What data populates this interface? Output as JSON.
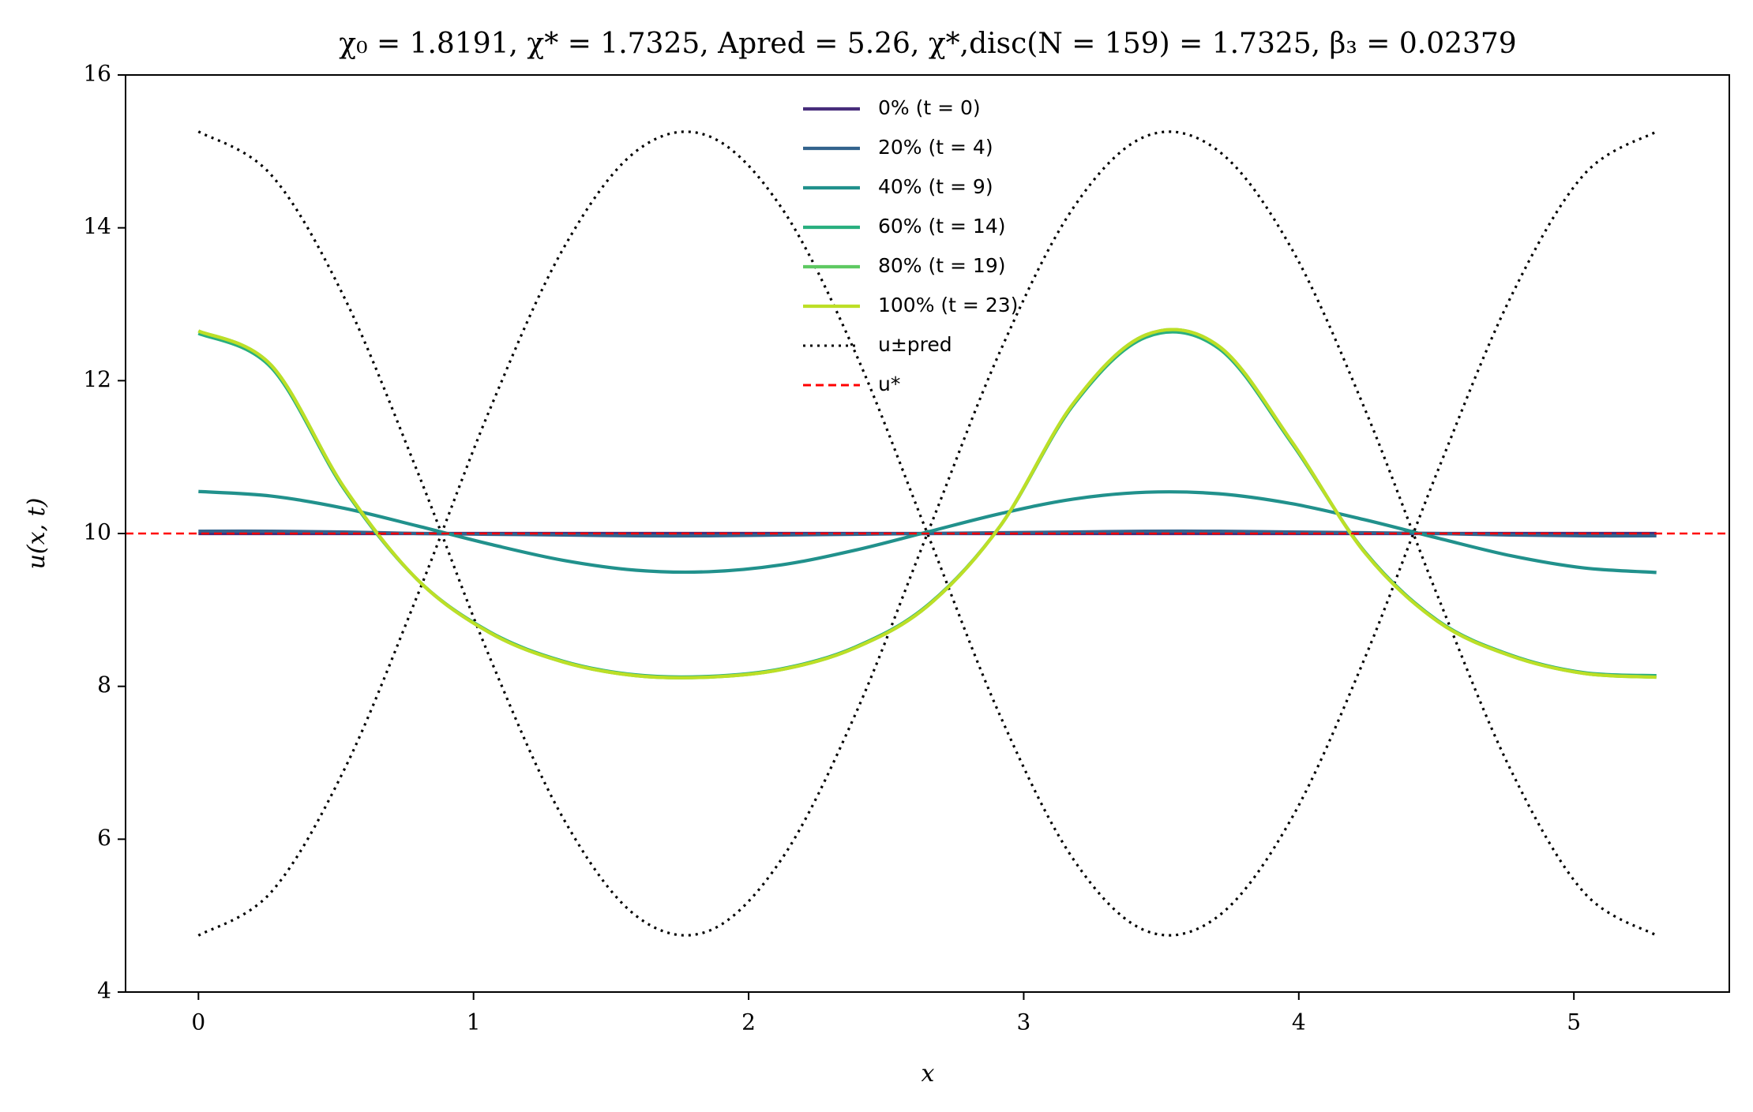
{
  "chart_data": {
    "type": "line",
    "title": "χ₀ = 1.8191,  χ* = 1.7325,  Apred = 5.26,  χ*,disc(N = 159) = 1.7325,  β₃ = 0.02379",
    "x_label": "x",
    "y_label": "u(x, t)",
    "xlim": [
      -0.265,
      5.565
    ],
    "ylim": [
      4,
      16
    ],
    "xticks": [
      0,
      1,
      2,
      3,
      4,
      5
    ],
    "yticks": [
      4,
      6,
      8,
      10,
      12,
      14,
      16
    ],
    "x": [
      0,
      0.265,
      0.53,
      0.795,
      1.06,
      1.325,
      1.59,
      1.855,
      2.12,
      2.385,
      2.65,
      2.915,
      3.18,
      3.445,
      3.71,
      3.975,
      4.24,
      4.505,
      4.77,
      5.035,
      5.3
    ],
    "series": [
      {
        "name": "0% (t = 0)",
        "color": "#472d7b",
        "linestyle": "solid",
        "values": [
          10,
          10,
          10,
          10,
          10,
          10,
          10,
          10,
          10,
          10,
          10,
          10,
          10,
          10,
          10,
          10,
          10,
          10,
          10,
          10,
          10
        ]
      },
      {
        "name": "20% (t = 4)",
        "color": "#33638d",
        "linestyle": "solid",
        "values": [
          10.03,
          10.03,
          10.02,
          10.0,
          9.99,
          9.98,
          9.97,
          9.97,
          9.98,
          9.99,
          10.0,
          10.01,
          10.02,
          10.03,
          10.03,
          10.02,
          10.01,
          10.0,
          9.98,
          9.97,
          9.97
        ]
      },
      {
        "name": "40% (t = 9)",
        "color": "#21918c",
        "linestyle": "solid",
        "values": [
          10.55,
          10.49,
          10.33,
          10.1,
          9.86,
          9.65,
          9.52,
          9.5,
          9.59,
          9.78,
          10.02,
          10.26,
          10.45,
          10.54,
          10.52,
          10.39,
          10.18,
          9.94,
          9.71,
          9.55,
          9.49
        ]
      },
      {
        "name": "60% (t = 14)",
        "color": "#29af7f",
        "linestyle": "solid",
        "values": [
          12.62,
          12.17,
          10.58,
          9.4,
          8.71,
          8.33,
          8.15,
          8.13,
          8.23,
          8.51,
          9.06,
          10.1,
          11.68,
          12.57,
          12.42,
          11.18,
          9.76,
          8.86,
          8.41,
          8.18,
          8.14
        ]
      },
      {
        "name": "80% (t = 19)",
        "color": "#5ec962",
        "linestyle": "solid",
        "values": [
          12.65,
          12.2,
          10.6,
          9.4,
          8.7,
          8.32,
          8.14,
          8.12,
          8.22,
          8.5,
          9.05,
          10.1,
          11.7,
          12.6,
          12.45,
          11.2,
          9.75,
          8.85,
          8.4,
          8.17,
          8.12
        ]
      },
      {
        "name": "100% (t = 23)",
        "color": "#bddf26",
        "linestyle": "solid",
        "values": [
          12.65,
          12.2,
          10.6,
          9.4,
          8.7,
          8.32,
          8.14,
          8.12,
          8.22,
          8.5,
          9.05,
          10.1,
          11.7,
          12.6,
          12.45,
          11.2,
          9.75,
          8.85,
          8.4,
          8.17,
          8.12
        ]
      },
      {
        "name": "u±pred",
        "color": "#000000",
        "linestyle": "dotted",
        "values": [
          15.26,
          14.69,
          13.09,
          10.82,
          8.37,
          6.28,
          5.0,
          4.8,
          5.74,
          7.61,
          10.0,
          12.39,
          14.26,
          15.2,
          15.0,
          13.72,
          11.63,
          9.18,
          6.91,
          5.31,
          4.74
        ]
      },
      {
        "color": "#000000",
        "linestyle": "dotted",
        "values": [
          4.74,
          5.31,
          6.91,
          9.18,
          11.63,
          13.72,
          15.0,
          15.2,
          14.26,
          12.39,
          10.0,
          7.61,
          5.74,
          4.8,
          5.0,
          6.28,
          8.37,
          10.82,
          13.09,
          14.69,
          15.26
        ]
      }
    ],
    "reference_line": {
      "name": "u*",
      "value": 10,
      "color": "#ff0000",
      "linestyle": "dashed"
    },
    "legend": "upper center"
  }
}
